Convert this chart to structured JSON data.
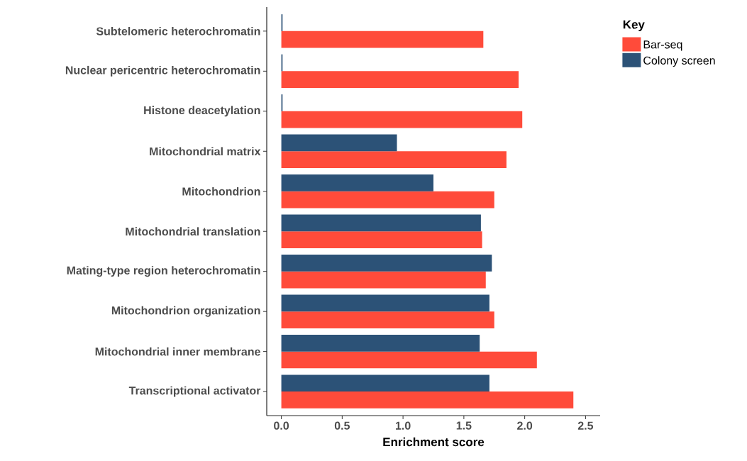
{
  "chart_data": {
    "type": "bar",
    "orientation": "horizontal",
    "xlabel": "Enrichment score",
    "legend_title": "Key",
    "legend": "right",
    "categories": [
      "Subtelomeric heterochromatin",
      "Nuclear pericentric heterochromatin",
      "Histone deacetylation",
      "Mitochondrial matrix",
      "Mitochondrion",
      "Mitochondrial translation",
      "Mating-type region heterochromatin",
      "Mitochondrion organization",
      "Mitochondrial inner membrane",
      "Transcriptional activator"
    ],
    "series": [
      {
        "name": "Bar-seq",
        "color": "#ff4b3a",
        "values": [
          1.66,
          1.95,
          1.98,
          1.85,
          1.75,
          1.65,
          1.68,
          1.75,
          2.1,
          2.4
        ]
      },
      {
        "name": "Colony screen",
        "color": "#2c5277",
        "values": [
          0.01,
          0.01,
          0.01,
          0.95,
          1.25,
          1.64,
          1.73,
          1.71,
          1.63,
          1.71
        ]
      }
    ],
    "xlim": [
      -0.12,
      2.62
    ],
    "xticks": [
      {
        "value": 0,
        "label": "0.0"
      },
      0.5,
      {
        "value": 1,
        "label": "1.0"
      },
      1.5,
      {
        "value": 2,
        "label": "2.0"
      },
      2.5
    ],
    "grid": false
  }
}
